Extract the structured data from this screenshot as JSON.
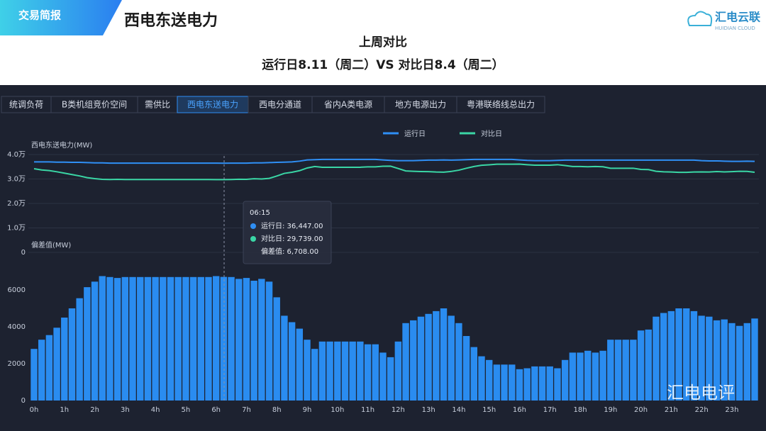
{
  "header": {
    "badge": "交易简报",
    "title": "西电东送电力",
    "logo": "汇电云联",
    "logo_sub": "HUIDIAN CLOUD"
  },
  "subtitle": [
    "上周对比",
    "运行日8.11（周二）VS 对比日8.4（周二）"
  ],
  "tabs": [
    "统调负荷",
    "B类机组竞价空间",
    "需供比",
    "西电东送电力",
    "西电分通道",
    "省内A类电源",
    "地方电源出力",
    "粤港联络线总出力"
  ],
  "active_tab": 3,
  "tooltip": {
    "time": "06:15",
    "rows": [
      "运行日: 36,447.00",
      "对比日: 29,739.00",
      "偏差值: 6,708.00"
    ]
  },
  "watermark": "汇电电评",
  "chart_data": [
    {
      "type": "line",
      "y_label": "西电东送电力(MW)",
      "ylim": [
        0,
        40000
      ],
      "yticks": [
        0,
        {
          "value": 10000,
          "label": "1.0万"
        },
        {
          "value": 20000,
          "label": "2.0万"
        },
        {
          "value": 30000,
          "label": "3.0万"
        },
        {
          "value": 40000,
          "label": "4.0万"
        }
      ],
      "grid": true,
      "legend": "top",
      "series": [
        {
          "name": "运行日",
          "color": "#2f8ff5",
          "values": [
            37000,
            37000,
            37000,
            36900,
            36900,
            36800,
            36800,
            36700,
            36600,
            36600,
            36500,
            36500,
            36500,
            36500,
            36500,
            36500,
            36500,
            36500,
            36500,
            36500,
            36500,
            36500,
            36500,
            36500,
            36500,
            36447,
            36500,
            36500,
            36500,
            36600,
            36600,
            36700,
            36800,
            36900,
            37000,
            37300,
            37800,
            37900,
            38000,
            38000,
            38000,
            38000,
            38000,
            38000,
            38000,
            38000,
            37800,
            37600,
            37500,
            37500,
            37500,
            37600,
            37700,
            37700,
            37800,
            37700,
            37800,
            37900,
            38000,
            38000,
            38000,
            38000,
            38000,
            38000,
            37800,
            37600,
            37500,
            37500,
            37500,
            37600,
            37700,
            37700,
            37700,
            37700,
            37700,
            37700,
            37700,
            37700,
            37700,
            37700,
            37700,
            37700,
            37700,
            37700,
            37700,
            37700,
            37700,
            37700,
            37500,
            37400,
            37400,
            37300,
            37200,
            37200,
            37300,
            37200
          ]
        },
        {
          "name": "对比日",
          "color": "#3ad6a5",
          "values": [
            34200,
            33700,
            33450,
            32950,
            32400,
            31800,
            31250,
            30550,
            30150,
            29850,
            29800,
            29850,
            29800,
            29800,
            29800,
            29800,
            29800,
            29800,
            29800,
            29800,
            29800,
            29800,
            29800,
            29800,
            29750,
            29739,
            29800,
            29900,
            29850,
            30100,
            30000,
            30250,
            31200,
            32300,
            32750,
            33400,
            34500,
            35100,
            34800,
            34800,
            34800,
            34800,
            34800,
            34800,
            34950,
            34950,
            35200,
            35250,
            34300,
            33300,
            33150,
            33050,
            33000,
            32850,
            32800,
            33100,
            33600,
            34400,
            35100,
            35600,
            35800,
            36050,
            36050,
            36050,
            36100,
            35850,
            35650,
            35650,
            35650,
            35850,
            35500,
            35100,
            35100,
            35000,
            35100,
            35000,
            34400,
            34400,
            34400,
            34400,
            33900,
            33850,
            33150,
            32950,
            32850,
            32700,
            32700,
            32850,
            32900,
            32850,
            33050,
            32900,
            33000,
            33150,
            33100,
            32750
          ]
        }
      ]
    },
    {
      "type": "bar",
      "y_label": "偏差值(MW)",
      "ylim": [
        0,
        8000
      ],
      "yticks": [
        0,
        2000,
        4000,
        6000
      ],
      "grid": false,
      "color": "#2a8cf0",
      "categories": [
        "0h",
        null,
        null,
        null,
        "1h",
        null,
        null,
        null,
        "2h",
        null,
        null,
        null,
        "3h",
        null,
        null,
        null,
        "4h",
        null,
        null,
        null,
        "5h",
        null,
        null,
        null,
        "6h",
        null,
        null,
        null,
        "7h",
        null,
        null,
        null,
        "8h",
        null,
        null,
        null,
        "9h",
        null,
        null,
        null,
        "10h",
        null,
        null,
        null,
        "11h",
        null,
        null,
        null,
        "12h",
        null,
        null,
        null,
        "13h",
        null,
        null,
        null,
        "14h",
        null,
        null,
        null,
        "15h",
        null,
        null,
        null,
        "16h",
        null,
        null,
        null,
        "17h",
        null,
        null,
        null,
        "18h",
        null,
        null,
        null,
        "19h",
        null,
        null,
        null,
        "20h",
        null,
        null,
        null,
        "21h",
        null,
        null,
        null,
        "22h",
        null,
        null,
        null,
        "23h",
        null,
        null,
        null
      ],
      "values": [
        2800,
        3300,
        3550,
        3950,
        4500,
        5000,
        5550,
        6150,
        6450,
        6750,
        6700,
        6650,
        6700,
        6700,
        6700,
        6700,
        6700,
        6700,
        6700,
        6700,
        6700,
        6700,
        6700,
        6700,
        6750,
        6708,
        6700,
        6600,
        6650,
        6500,
        6600,
        6450,
        5600,
        4600,
        4250,
        3900,
        3300,
        2800,
        3200,
        3200,
        3200,
        3200,
        3200,
        3200,
        3050,
        3050,
        2600,
        2350,
        3200,
        4200,
        4350,
        4550,
        4700,
        4850,
        5000,
        4600,
        4200,
        3500,
        2900,
        2400,
        2200,
        1950,
        1950,
        1950,
        1700,
        1750,
        1850,
        1850,
        1850,
        1750,
        2200,
        2600,
        2600,
        2700,
        2600,
        2700,
        3300,
        3300,
        3300,
        3300,
        3800,
        3850,
        4550,
        4750,
        4850,
        5000,
        5000,
        4850,
        4600,
        4550,
        4350,
        4400,
        4200,
        4050,
        4200,
        4450
      ]
    }
  ]
}
